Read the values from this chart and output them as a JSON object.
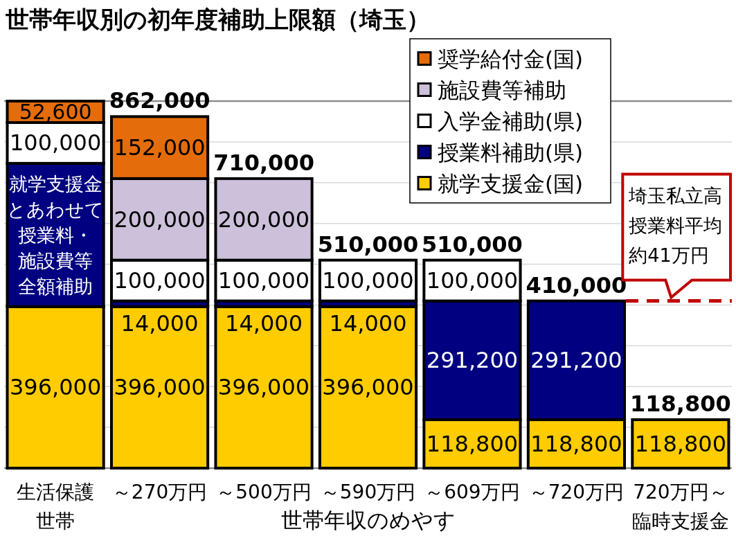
{
  "chart_data": {
    "type": "bar",
    "title": "世帯年収別の初年度補助上限額（埼玉）",
    "xlabel": "世帯年収のめやす",
    "categories": [
      "生活保護世帯",
      "～270万円",
      "～500万円",
      "～590万円",
      "～609万円",
      "～720万円",
      "720万円～臨時支援金"
    ],
    "stacked": true,
    "series": [
      {
        "name": "就学支援金(国)",
        "color": "#ffcc00",
        "values": [
          396000,
          396000,
          396000,
          396000,
          118800,
          118800,
          118800
        ],
        "value_labels": [
          "396,000",
          "396,000",
          "396,000",
          "396,000",
          "118,800",
          "118,800",
          "118,800"
        ]
      },
      {
        "name": "授業料補助(県)",
        "color": "#000080",
        "values": [
          351400,
          14000,
          14000,
          14000,
          291200,
          291200,
          null
        ],
        "value_labels": [
          null,
          "14,000",
          "14,000",
          "14,000",
          "291,200",
          "291,200",
          null
        ]
      },
      {
        "name": "入学金補助(県)",
        "color": "#ffffff",
        "values": [
          100000,
          100000,
          100000,
          100000,
          100000,
          null,
          null
        ],
        "value_labels": [
          "100,000",
          "100,000",
          "100,000",
          "100,000",
          "100,000",
          null,
          null
        ]
      },
      {
        "name": "施設費等補助",
        "color": "#ccc0da",
        "values": [
          null,
          200000,
          200000,
          null,
          null,
          null,
          null
        ],
        "value_labels": [
          null,
          "200,000",
          "200,000",
          null,
          null,
          null,
          null
        ]
      },
      {
        "name": "奨学給付金(国)",
        "color": "#e46c0a",
        "values": [
          52600,
          152000,
          null,
          null,
          null,
          null,
          null
        ],
        "value_labels": [
          "52,600",
          "152,000",
          null,
          null,
          null,
          null,
          null
        ]
      }
    ],
    "totals": [
      null,
      "862,000",
      "710,000",
      "510,000",
      "510,000",
      "410,000",
      "118,800"
    ],
    "ylim": [
      0,
      900000
    ],
    "yticks": [
      {
        "value": 0,
        "label": null
      },
      {
        "value": 100000,
        "label": null
      },
      {
        "value": 200000,
        "label": null
      },
      {
        "value": 300000,
        "label": null
      },
      {
        "value": 400000,
        "label": null
      },
      {
        "value": 500000,
        "label": null
      },
      {
        "value": 600000,
        "label": null
      },
      {
        "value": 700000,
        "label": null
      },
      {
        "value": 800000,
        "label": null
      },
      {
        "value": 900000,
        "label": null
      }
    ],
    "grid": "y",
    "tick_labels": "x",
    "legend": "top right",
    "ref_lines": [
      {
        "axis": "y",
        "value": 410000,
        "label": "埼玉私立高授業料平均約41万円",
        "color": "#c00000",
        "line_style": "dashed"
      }
    ],
    "annotations": [
      "就学支援金とあわせて授業料・施設費等全額補助"
    ]
  }
}
